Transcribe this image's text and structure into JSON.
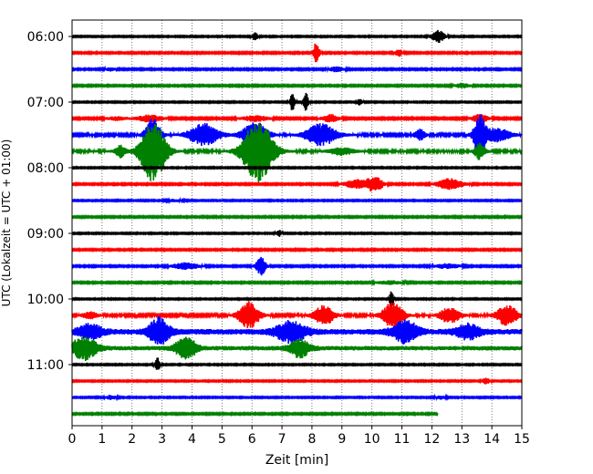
{
  "chart_data": {
    "type": "line",
    "title": "",
    "xlabel": "Zeit  [min]",
    "ylabel": "UTC (Lokalzeit = UTC + 01:00)",
    "xlim": [
      0,
      15
    ],
    "x_ticks": [
      0,
      1,
      2,
      3,
      4,
      5,
      6,
      7,
      8,
      9,
      10,
      11,
      12,
      13,
      14,
      15
    ],
    "x_tick_labels": [
      "0",
      "1",
      "2",
      "3",
      "4",
      "5",
      "6",
      "7",
      "8",
      "9",
      "10",
      "11",
      "12",
      "13",
      "14",
      "15"
    ],
    "y_tick_labels": [
      "06:00",
      "07:00",
      "08:00",
      "09:00",
      "10:00",
      "11:00"
    ],
    "y_tick_rows": [
      0,
      4,
      8,
      12,
      16,
      20
    ],
    "grid": "vertical dotted",
    "minutes_per_row": 15,
    "color_cycle": [
      "#000000",
      "#ff0000",
      "#0000ff",
      "#008000"
    ],
    "rows": [
      {
        "label": "06:00",
        "end": 15,
        "noise": 0.06,
        "events": [
          {
            "t": 6.1,
            "amp": 0.35,
            "w": 0.12
          },
          {
            "t": 12.2,
            "amp": 0.6,
            "w": 0.25
          }
        ]
      },
      {
        "label": "06:15",
        "end": 15,
        "noise": 0.07,
        "events": [
          {
            "t": 8.15,
            "amp": 1.0,
            "w": 0.12
          },
          {
            "t": 10.9,
            "amp": 0.3,
            "w": 0.15
          }
        ]
      },
      {
        "label": "06:30",
        "end": 15,
        "noise": 0.07,
        "events": [
          {
            "t": 1.3,
            "amp": 0.15,
            "w": 0.2
          },
          {
            "t": 8.8,
            "amp": 0.2,
            "w": 0.3
          }
        ]
      },
      {
        "label": "06:45",
        "end": 15,
        "noise": 0.07,
        "events": [
          {
            "t": 13.0,
            "amp": 0.2,
            "w": 0.3
          }
        ]
      },
      {
        "label": "07:00",
        "end": 15,
        "noise": 0.06,
        "events": [
          {
            "t": 7.35,
            "amp": 0.8,
            "w": 0.1
          },
          {
            "t": 7.8,
            "amp": 0.8,
            "w": 0.1
          },
          {
            "t": 9.6,
            "amp": 0.3,
            "w": 0.1
          }
        ]
      },
      {
        "label": "07:15",
        "end": 15,
        "noise": 0.08,
        "events": [
          {
            "t": 1.5,
            "amp": 0.15,
            "w": 0.4
          },
          {
            "t": 2.6,
            "amp": 0.3,
            "w": 0.5
          },
          {
            "t": 6.1,
            "amp": 0.25,
            "w": 0.5
          },
          {
            "t": 8.6,
            "amp": 0.35,
            "w": 0.3
          },
          {
            "t": 13.6,
            "amp": 0.4,
            "w": 0.3
          }
        ]
      },
      {
        "label": "07:30",
        "end": 15,
        "noise": 0.1,
        "events": [
          {
            "t": 2.7,
            "amp": 1.5,
            "w": 0.3
          },
          {
            "t": 4.4,
            "amp": 1.0,
            "w": 0.6
          },
          {
            "t": 6.1,
            "amp": 1.2,
            "w": 0.5
          },
          {
            "t": 8.3,
            "amp": 1.0,
            "w": 0.6
          },
          {
            "t": 11.6,
            "amp": 0.5,
            "w": 0.2
          },
          {
            "t": 13.6,
            "amp": 1.8,
            "w": 0.25
          },
          {
            "t": 14.2,
            "amp": 0.6,
            "w": 0.5
          }
        ]
      },
      {
        "label": "07:45",
        "end": 15,
        "noise": 0.11,
        "events": [
          {
            "t": 1.6,
            "amp": 0.6,
            "w": 0.2
          },
          {
            "t": 2.7,
            "amp": 2.8,
            "w": 0.5
          },
          {
            "t": 6.2,
            "amp": 2.8,
            "w": 0.6
          },
          {
            "t": 9.0,
            "amp": 0.3,
            "w": 0.5
          },
          {
            "t": 13.6,
            "amp": 0.8,
            "w": 0.2
          }
        ]
      },
      {
        "label": "08:00",
        "end": 15,
        "noise": 0.06,
        "events": []
      },
      {
        "label": "08:15",
        "end": 15,
        "noise": 0.07,
        "events": [
          {
            "t": 9.5,
            "amp": 0.4,
            "w": 0.5
          },
          {
            "t": 10.1,
            "amp": 0.7,
            "w": 0.3
          },
          {
            "t": 12.6,
            "amp": 0.5,
            "w": 0.5
          }
        ]
      },
      {
        "label": "08:30",
        "end": 15,
        "noise": 0.06,
        "events": [
          {
            "t": 3.4,
            "amp": 0.1,
            "w": 0.3
          }
        ]
      },
      {
        "label": "08:45",
        "end": 15,
        "noise": 0.07,
        "events": []
      },
      {
        "label": "09:00",
        "end": 15,
        "noise": 0.06,
        "events": [
          {
            "t": 6.9,
            "amp": 0.3,
            "w": 0.1
          }
        ]
      },
      {
        "label": "09:15",
        "end": 15,
        "noise": 0.07,
        "events": []
      },
      {
        "label": "09:30",
        "end": 15,
        "noise": 0.07,
        "events": [
          {
            "t": 3.8,
            "amp": 0.3,
            "w": 0.5
          },
          {
            "t": 6.3,
            "amp": 0.8,
            "w": 0.2
          },
          {
            "t": 12.5,
            "amp": 0.2,
            "w": 0.5
          }
        ]
      },
      {
        "label": "09:45",
        "end": 15,
        "noise": 0.07,
        "events": [
          {
            "t": 10.6,
            "amp": 0.15,
            "w": 0.5
          }
        ]
      },
      {
        "label": "10:00",
        "end": 15,
        "noise": 0.06,
        "events": [
          {
            "t": 10.65,
            "amp": 0.8,
            "w": 0.08
          }
        ]
      },
      {
        "label": "10:15",
        "end": 15,
        "noise": 0.1,
        "events": [
          {
            "t": 0.6,
            "amp": 0.3,
            "w": 0.3
          },
          {
            "t": 5.9,
            "amp": 1.2,
            "w": 0.4
          },
          {
            "t": 8.4,
            "amp": 0.9,
            "w": 0.4
          },
          {
            "t": 10.7,
            "amp": 1.2,
            "w": 0.4
          },
          {
            "t": 12.6,
            "amp": 0.7,
            "w": 0.4
          },
          {
            "t": 14.5,
            "amp": 1.0,
            "w": 0.4
          }
        ]
      },
      {
        "label": "10:30",
        "end": 15,
        "noise": 0.25,
        "events": [
          {
            "t": 0.6,
            "amp": 0.6,
            "w": 0.5
          },
          {
            "t": 2.9,
            "amp": 1.2,
            "w": 0.4
          },
          {
            "t": 7.3,
            "amp": 0.9,
            "w": 0.6
          },
          {
            "t": 11.1,
            "amp": 1.0,
            "w": 0.5
          },
          {
            "t": 13.2,
            "amp": 0.6,
            "w": 0.5
          }
        ]
      },
      {
        "label": "10:45",
        "end": 15,
        "noise": 0.2,
        "events": [
          {
            "t": 0.4,
            "amp": 1.0,
            "w": 0.5
          },
          {
            "t": 3.8,
            "amp": 1.0,
            "w": 0.4
          },
          {
            "t": 7.6,
            "amp": 0.8,
            "w": 0.4
          }
        ]
      },
      {
        "label": "11:00",
        "end": 15,
        "noise": 0.06,
        "events": [
          {
            "t": 2.85,
            "amp": 0.6,
            "w": 0.1
          }
        ]
      },
      {
        "label": "11:15",
        "end": 15,
        "noise": 0.06,
        "events": [
          {
            "t": 13.8,
            "amp": 0.3,
            "w": 0.15
          }
        ]
      },
      {
        "label": "11:30",
        "end": 15,
        "noise": 0.06,
        "events": [
          {
            "t": 1.3,
            "amp": 0.2,
            "w": 0.2
          },
          {
            "t": 12.3,
            "amp": 0.15,
            "w": 0.2
          }
        ]
      },
      {
        "label": "11:45",
        "end": 12.2,
        "noise": 0.07,
        "events": []
      }
    ]
  }
}
